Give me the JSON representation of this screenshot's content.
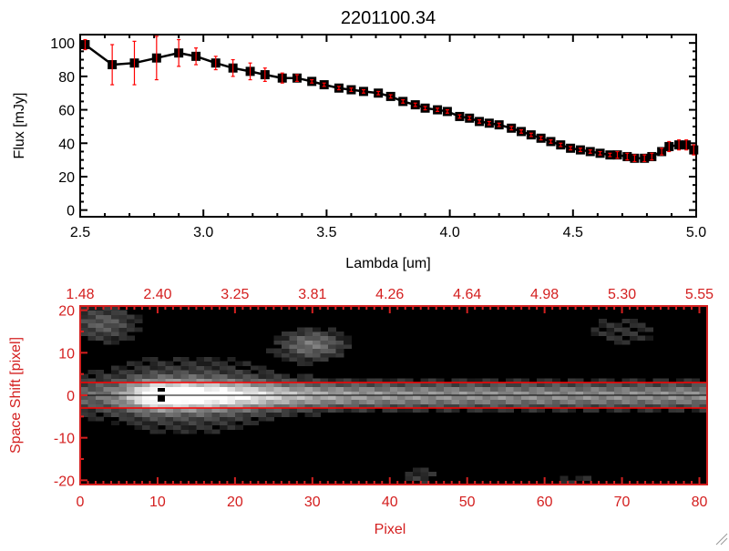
{
  "chart_data": [
    {
      "type": "line",
      "title": "2201100.34",
      "xlabel": "Lambda [um]",
      "ylabel": "Flux [mJy]",
      "xlim": [
        2.5,
        5.0
      ],
      "ylim": [
        -4,
        105
      ],
      "xticks": [
        "2.5",
        "3.0",
        "3.5",
        "4.0",
        "4.5",
        "5.0"
      ],
      "xtick_values": [
        2.5,
        3.0,
        3.5,
        4.0,
        4.5,
        5.0
      ],
      "yticks": [
        "0",
        "20",
        "40",
        "60",
        "80",
        "100"
      ],
      "ytick_values": [
        0,
        20,
        40,
        60,
        80,
        100
      ],
      "colors": {
        "line": "#000000",
        "marker": "#000000",
        "errorbar": "#ff0000"
      },
      "marker": "square",
      "x": [
        2.52,
        2.63,
        2.72,
        2.81,
        2.9,
        2.97,
        3.05,
        3.12,
        3.19,
        3.25,
        3.32,
        3.38,
        3.44,
        3.49,
        3.55,
        3.6,
        3.65,
        3.71,
        3.76,
        3.81,
        3.86,
        3.9,
        3.95,
        3.99,
        4.04,
        4.08,
        4.12,
        4.16,
        4.2,
        4.25,
        4.29,
        4.33,
        4.37,
        4.41,
        4.45,
        4.49,
        4.53,
        4.57,
        4.61,
        4.65,
        4.68,
        4.72,
        4.75,
        4.79,
        4.82,
        4.86,
        4.89,
        4.93,
        4.96,
        4.99
      ],
      "y": [
        99,
        87,
        88,
        91,
        94,
        92,
        88,
        85,
        83,
        81,
        79,
        79,
        77,
        75,
        73,
        72,
        71,
        70,
        68,
        65,
        63,
        61,
        60,
        59,
        56,
        55,
        53,
        52,
        51,
        49,
        47,
        45,
        43,
        41,
        39,
        37,
        36,
        35,
        34,
        33,
        33,
        32,
        31,
        31,
        32,
        35,
        38,
        39,
        39,
        36
      ],
      "yerr": [
        3,
        12,
        13,
        13,
        8,
        5,
        4,
        5,
        5,
        4,
        3,
        2,
        1,
        1,
        1,
        1,
        1,
        1,
        1,
        1,
        1,
        1,
        1,
        1,
        1,
        1,
        1,
        1,
        1,
        1,
        1,
        1,
        1,
        1,
        1,
        1,
        1,
        1,
        1,
        1,
        2,
        2,
        2,
        2,
        2,
        2,
        3,
        3,
        3,
        3
      ]
    },
    {
      "type": "heatmap",
      "xlabel": "Pixel",
      "ylabel": "Space Shift [pixel]",
      "xlim": [
        0,
        81
      ],
      "ylim": [
        -21,
        21
      ],
      "xticks": [
        "0",
        "10",
        "20",
        "30",
        "40",
        "50",
        "60",
        "70",
        "80"
      ],
      "xtick_values": [
        0,
        10,
        20,
        30,
        40,
        50,
        60,
        70,
        80
      ],
      "yticks": [
        "-20",
        "-10",
        "0",
        "10",
        "20"
      ],
      "ytick_values": [
        -20,
        -10,
        0,
        10,
        20
      ],
      "top_axis_ticks": [
        "1.48",
        "2.40",
        "3.25",
        "3.81",
        "4.26",
        "4.64",
        "4.98",
        "5.30",
        "5.55"
      ],
      "colormap": "grayscale",
      "colors": {
        "axes": "#d42020",
        "aperture_lines": "#ff0000",
        "center_line": "#000000"
      },
      "aperture_lines_y": [
        3,
        -3
      ],
      "center_line_y": 0
    }
  ]
}
